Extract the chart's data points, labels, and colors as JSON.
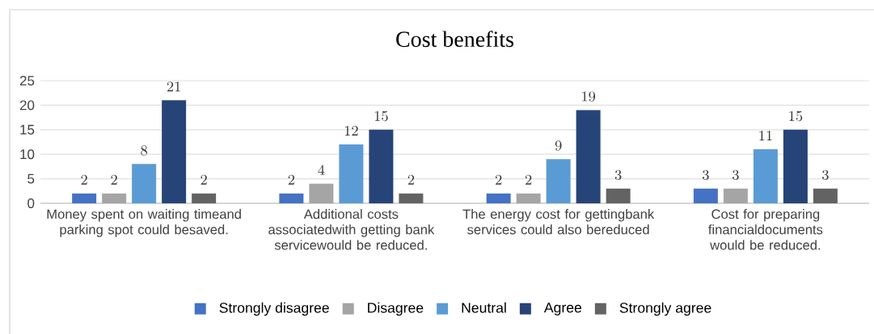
{
  "chart_data": {
    "type": "bar",
    "title": "Cost benefits",
    "categories": [
      "Money spent on waiting timeand parking spot could besaved.",
      "Additional costs associatedwith getting bank servicewould be reduced.",
      "The energy cost for gettingbank services could also bereduced",
      "Cost for preparing financialdocuments would be reduced."
    ],
    "series": [
      {
        "name": "Strongly disagree",
        "color": "#4472c4",
        "values": [
          2,
          2,
          2,
          3
        ]
      },
      {
        "name": "Disagree",
        "color": "#a5a5a5",
        "values": [
          2,
          4,
          2,
          3
        ]
      },
      {
        "name": "Neutral",
        "color": "#5b9bd5",
        "values": [
          8,
          12,
          9,
          11
        ]
      },
      {
        "name": "Agree",
        "color": "#264478",
        "values": [
          21,
          15,
          19,
          15
        ]
      },
      {
        "name": "Strongly agree",
        "color": "#636363",
        "values": [
          2,
          2,
          3,
          3
        ]
      }
    ],
    "ylim": [
      0,
      25
    ],
    "yticks": [
      0,
      5,
      10,
      15,
      20,
      25
    ],
    "grid": "y",
    "legend": "bottom",
    "data_labels": true
  }
}
